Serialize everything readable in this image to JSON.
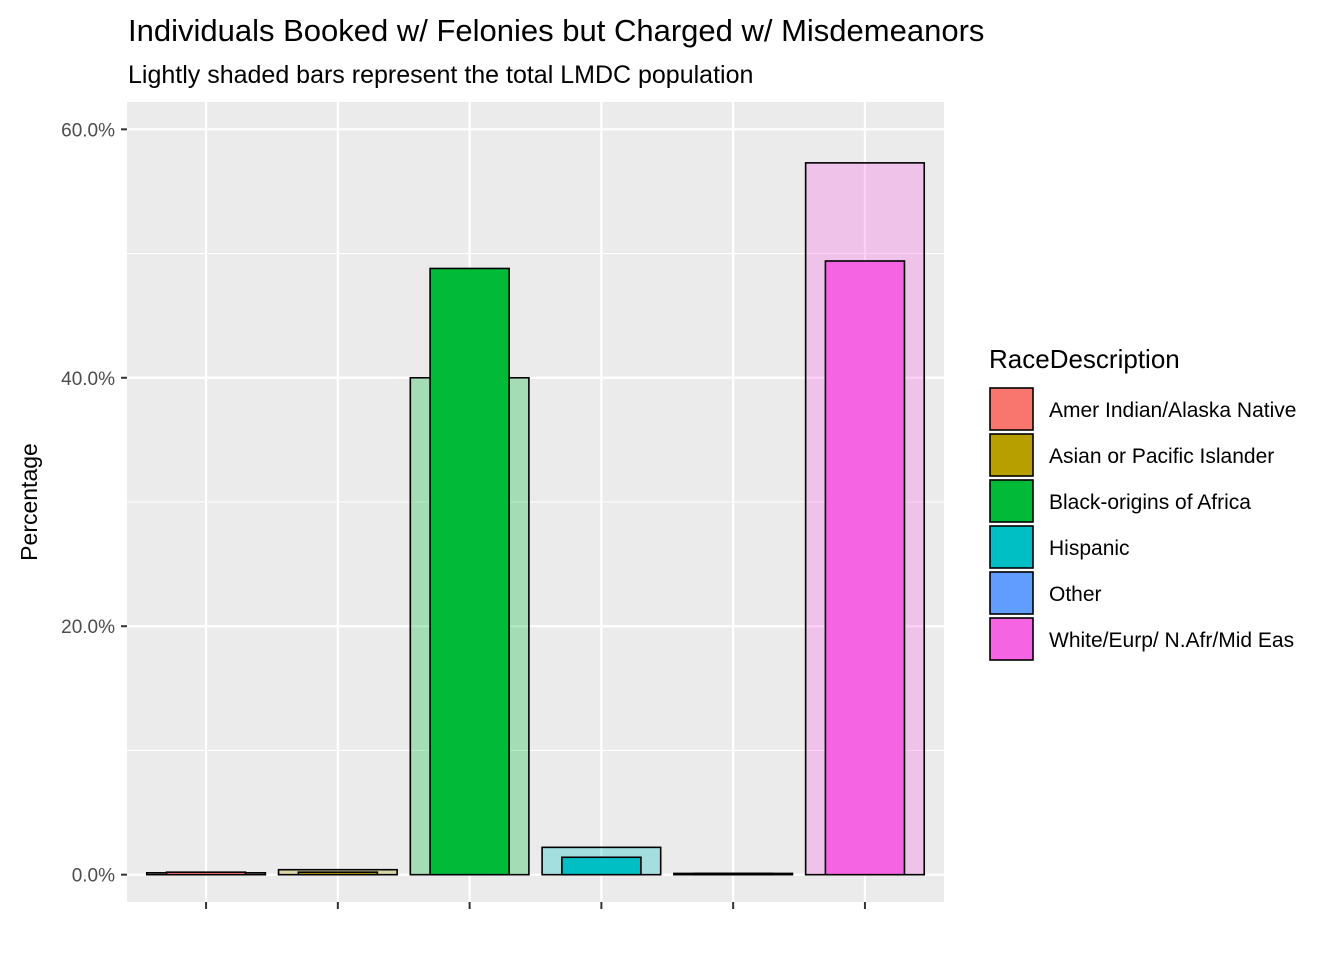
{
  "chart_data": {
    "type": "bar",
    "title": "Individuals Booked w/ Felonies but Charged w/ Misdemeanors",
    "subtitle": "Lightly shaded bars represent the total LMDC population",
    "xlabel": "",
    "ylabel": "Percentage",
    "ylim": [
      -2.2,
      62.2
    ],
    "y_ticks": [
      0,
      20,
      40,
      60
    ],
    "y_tick_labels": [
      "0.0%",
      "20.0%",
      "40.0%",
      "60.0%"
    ],
    "grid": true,
    "legend_title": "RaceDescription",
    "legend_position": "right",
    "categories": [
      "Amer Indian/Alaska Native",
      "Asian or Pacific Islander",
      "Black-origins of Africa",
      "Hispanic",
      "Other",
      "White/Eurp/ N.Afr/Mid Eas"
    ],
    "colors": [
      "#F8766D",
      "#B79F00",
      "#00BA38",
      "#00BFC4",
      "#619CFF",
      "#F564E3"
    ],
    "series": [
      {
        "values": [
          0.15,
          0.4,
          40.0,
          2.2,
          0.1,
          57.3
        ]
      },
      {
        "values": [
          0.2,
          0.2,
          48.8,
          1.4,
          0.1,
          49.4
        ]
      }
    ]
  }
}
